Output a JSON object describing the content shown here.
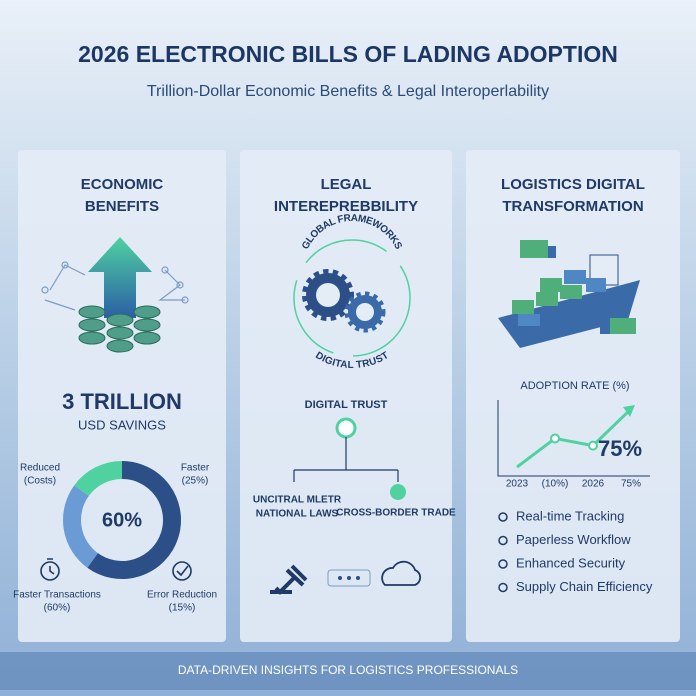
{
  "header": {
    "title": "2026 ELECTRONIC BILLS OF LADING ADOPTION",
    "subtitle": "Trillion-Dollar Economic Benefits & Legal Interoperlability"
  },
  "economic": {
    "heading": [
      "ECONOMIC",
      "BENEFITS"
    ],
    "amount": "3 TRILLION",
    "amount_caption": "USD SAVINGS",
    "donut": {
      "type": "pie",
      "center_label": "60%",
      "values": [
        60,
        25,
        15
      ],
      "colors": [
        "#2b4f86",
        "#6a9bd4",
        "#4fd1a0"
      ],
      "labels": {
        "top_left": [
          "Reduced",
          "(Costs)"
        ],
        "top_right": [
          "Faster",
          "(25%)"
        ],
        "bottom_left": [
          "Faster Transactions",
          "(60%)"
        ],
        "bottom_right": [
          "Error Reduction",
          "(15%)"
        ]
      }
    }
  },
  "legal": {
    "heading": [
      "LEGAL",
      "INTEREPREBBILITY"
    ],
    "ring_top": "GLOBAL FRAMEWORKS",
    "ring_bottom": "DIGITAL TRUST",
    "tree_root": "DIGITAL TRUST",
    "left_branch": [
      "UNCITRAL MLETR",
      "NATIONAL LAWS"
    ],
    "right_branch": "CROSS-BORDER TRADE"
  },
  "logistics": {
    "heading": [
      "LOGISTICS DIGITAL",
      "TRANSFORMATION"
    ],
    "chart_data": {
      "type": "line",
      "title": "ADOPTION RATE (%)",
      "categories": [
        "2023",
        "(10%)",
        "2026",
        "75%"
      ],
      "values": [
        10,
        42,
        34,
        75
      ],
      "ylim": [
        0,
        85
      ],
      "color": "#4fd1a0",
      "value_callout": "75%"
    },
    "features": [
      "Real-time Tracking",
      "Paperless Workflow",
      "Enhanced Security",
      "Supply Chain Efficiency"
    ]
  },
  "footer": "DATA-DRIVEN INSIGHTS FOR LOGISTICS PROFESSIONALS"
}
